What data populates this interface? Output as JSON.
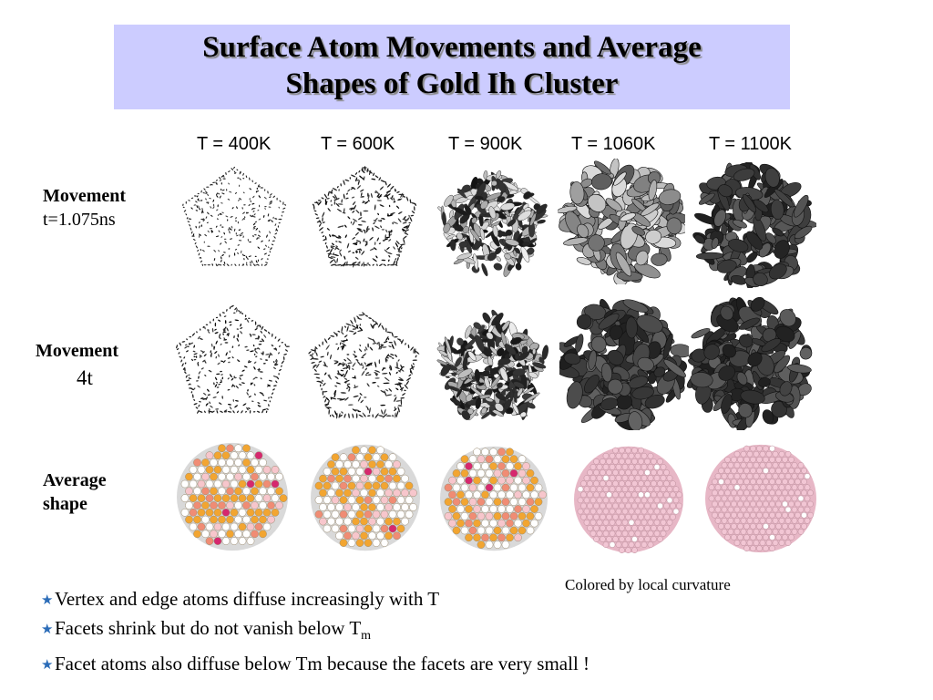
{
  "title": {
    "line1": "Surface Atom Movements and Average",
    "line2": "Shapes of Gold Ih Cluster"
  },
  "temperatures": [
    "T = 400K",
    "T = 600K",
    "T = 900K",
    "T = 1060K",
    "T = 1100K"
  ],
  "rows": [
    {
      "label_bold": "Movement",
      "label_sub": "t=1.075ns"
    },
    {
      "label_bold": "Movement",
      "label_sub": "4t"
    },
    {
      "label_bold": "Average",
      "label_bold2": "shape"
    }
  ],
  "caption": "Colored by local curvature",
  "bullets": [
    {
      "text": "Vertex and edge atoms diffuse increasingly with T"
    },
    {
      "text": "Facets shrink but do not vanish below T",
      "sub": "m"
    },
    {
      "text": "Facet atoms also diffuse below Tm because the facets are very small !"
    }
  ],
  "colors": {
    "title_bg": "#ccccff",
    "bullet_star": "#2b6cb8",
    "pink_atom": "#f2c6d4",
    "orange_atom": "#f2a531"
  }
}
